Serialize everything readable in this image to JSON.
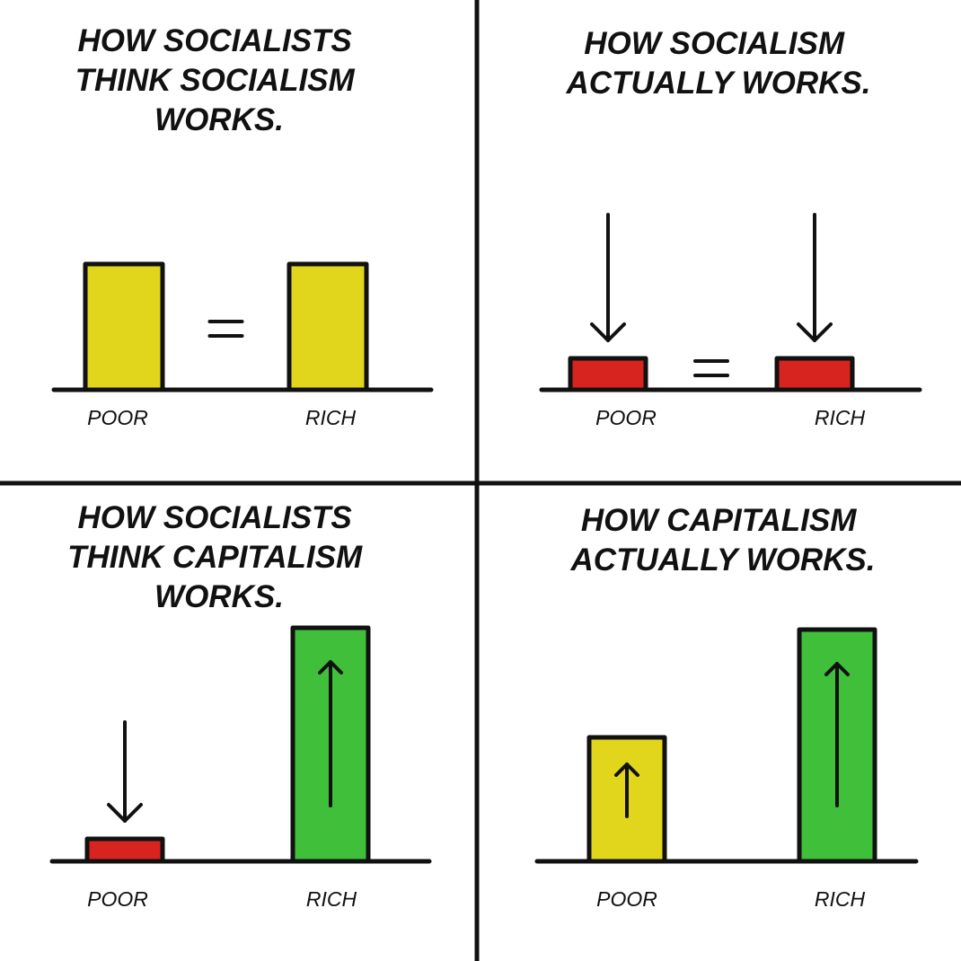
{
  "colors": {
    "yellow": "#e2d61c",
    "red": "#d8241f",
    "green": "#3fbf3a",
    "ink": "#111111",
    "background": "#ffffff"
  },
  "icons": {
    "down_arrow": "down-arrow-icon",
    "up_arrow": "up-arrow-icon",
    "equals": "equals-icon"
  },
  "chart_data": [
    {
      "type": "bar",
      "title": [
        "HOW SOCIALISTS",
        "THINK SOCIALISM",
        "WORKS."
      ],
      "categories": [
        "POOR",
        "RICH"
      ],
      "values": [
        140,
        140
      ],
      "colors": [
        "yellow",
        "yellow"
      ],
      "arrows": [
        "none",
        "none"
      ],
      "equals_between": true,
      "ylim": [
        0,
        270
      ],
      "xlabel": "",
      "ylabel": "",
      "grid": false
    },
    {
      "type": "bar",
      "title": [
        "HOW SOCIALISM",
        "ACTUALLY WORKS."
      ],
      "categories": [
        "POOR",
        "RICH"
      ],
      "values": [
        35,
        35
      ],
      "colors": [
        "red",
        "red"
      ],
      "arrows": [
        "down",
        "down"
      ],
      "equals_between": true,
      "ylim": [
        0,
        270
      ],
      "xlabel": "",
      "ylabel": "",
      "grid": false
    },
    {
      "type": "bar",
      "title": [
        "HOW SOCIALISTS",
        "THINK CAPITALISM",
        "WORKS."
      ],
      "categories": [
        "POOR",
        "RICH"
      ],
      "values": [
        25,
        260
      ],
      "colors": [
        "red",
        "green"
      ],
      "arrows": [
        "down",
        "up"
      ],
      "equals_between": false,
      "ylim": [
        0,
        270
      ],
      "xlabel": "",
      "ylabel": "",
      "grid": false
    },
    {
      "type": "bar",
      "title": [
        "HOW CAPITALISM",
        "ACTUALLY WORKS."
      ],
      "categories": [
        "POOR",
        "RICH"
      ],
      "values": [
        138,
        258
      ],
      "colors": [
        "yellow",
        "green"
      ],
      "arrows": [
        "up",
        "up"
      ],
      "equals_between": false,
      "ylim": [
        0,
        270
      ],
      "xlabel": "",
      "ylabel": "",
      "grid": false
    }
  ]
}
